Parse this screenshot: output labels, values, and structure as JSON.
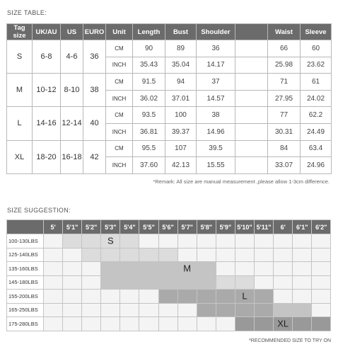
{
  "size_table": {
    "title": "SIZE TABLE:",
    "headers": [
      "Tag size",
      "UK/AU",
      "US",
      "EURO",
      "Unit",
      "Length",
      "Bust",
      "Shoulder",
      "",
      "Waist",
      "Sleeve"
    ],
    "sizes": [
      {
        "tag": "S",
        "uk": "6-8",
        "us": "4-6",
        "euro": "36",
        "cm": [
          "90",
          "89",
          "36",
          "",
          "66",
          "60"
        ],
        "inch": [
          "35.43",
          "35.04",
          "14.17",
          "",
          "25.98",
          "23.62"
        ]
      },
      {
        "tag": "M",
        "uk": "10-12",
        "us": "8-10",
        "euro": "38",
        "cm": [
          "91.5",
          "94",
          "37",
          "",
          "71",
          "61"
        ],
        "inch": [
          "36.02",
          "37.01",
          "14.57",
          "",
          "27.95",
          "24.02"
        ]
      },
      {
        "tag": "L",
        "uk": "14-16",
        "us": "12-14",
        "euro": "40",
        "cm": [
          "93.5",
          "100",
          "38",
          "",
          "77",
          "62.2"
        ],
        "inch": [
          "36.81",
          "39.37",
          "14.96",
          "",
          "30.31",
          "24.49"
        ]
      },
      {
        "tag": "XL",
        "uk": "18-20",
        "us": "16-18",
        "euro": "42",
        "cm": [
          "95.5",
          "107",
          "39.5",
          "",
          "84",
          "63.4"
        ],
        "inch": [
          "37.60",
          "42.13",
          "15.55",
          "",
          "33.07",
          "24.96"
        ]
      }
    ],
    "unit_cm": "CM",
    "unit_inch": "INCH",
    "remark": "*Remark: All size are manual measurement ,please allow 1-3cm difference."
  },
  "suggestion": {
    "title": "SIZE SUGGESTION:",
    "heights": [
      "5'",
      "5'1\"",
      "5'2\"",
      "5'3\"",
      "5'4\"",
      "5'5\"",
      "5'6\"",
      "5'7\"",
      "5'8\"",
      "5'9\"",
      "5'10\"",
      "5'11\"",
      "6'",
      "6'1\"",
      "6'2\""
    ],
    "weights": [
      "100-130LBS",
      "125-140LBS",
      "135-160LBS",
      "145-180LBS",
      "155-200LBS",
      "165-250LBS",
      "175-280LBS"
    ],
    "grid": [
      [
        0,
        1,
        1,
        1,
        1,
        0,
        0,
        0,
        0,
        0,
        0,
        0,
        0,
        0,
        0
      ],
      [
        0,
        0,
        1,
        1,
        1,
        1,
        1,
        0,
        0,
        0,
        0,
        0,
        0,
        0,
        0
      ],
      [
        0,
        0,
        0,
        2,
        2,
        2,
        2,
        2,
        2,
        0,
        0,
        0,
        0,
        0,
        0
      ],
      [
        0,
        0,
        0,
        2,
        2,
        2,
        2,
        2,
        2,
        1,
        1,
        0,
        0,
        0,
        0
      ],
      [
        0,
        0,
        0,
        0,
        0,
        0,
        3,
        3,
        3,
        3,
        3,
        3,
        0,
        0,
        0
      ],
      [
        0,
        0,
        0,
        0,
        0,
        0,
        0,
        0,
        3,
        3,
        3,
        3,
        2,
        2,
        0
      ],
      [
        0,
        0,
        0,
        0,
        0,
        0,
        0,
        0,
        0,
        0,
        4,
        4,
        4,
        4,
        4
      ]
    ],
    "labels": [
      {
        "text": "S",
        "row": 0,
        "col": 3
      },
      {
        "text": "M",
        "row": 2,
        "col": 7
      },
      {
        "text": "L",
        "row": 4,
        "col": 10
      },
      {
        "text": "XL",
        "row": 6,
        "col": 12
      }
    ],
    "recommend": "*RECOMMENDED SIZE TO TRY ON"
  }
}
